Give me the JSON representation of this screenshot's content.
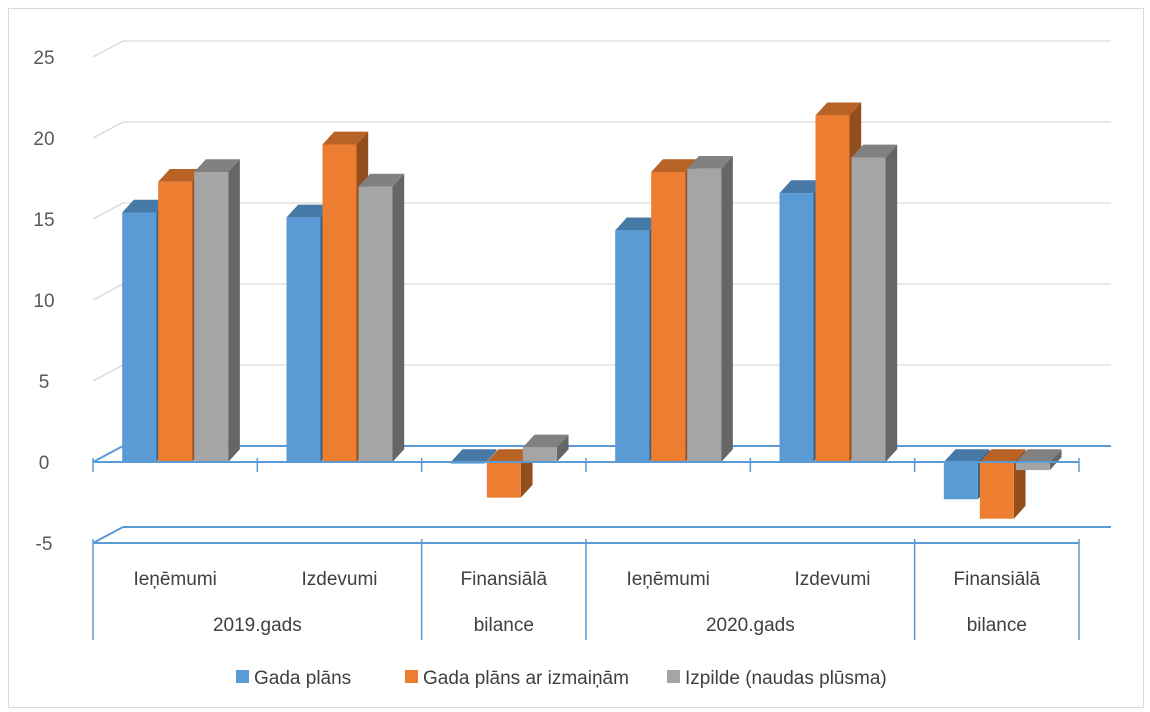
{
  "chart_data": {
    "type": "bar",
    "style": "3d-clustered-column",
    "groups": [
      {
        "label": "2019.gads",
        "categories": [
          "Ieņēmumi",
          "Izdevumi",
          [
            "Finansiālā",
            "bilance"
          ]
        ]
      },
      {
        "label": "2020.gads",
        "categories": [
          "Ieņēmumi",
          "Izdevumi",
          [
            "Finansiālā",
            "bilance"
          ]
        ]
      }
    ],
    "series": [
      {
        "name": "Gada plāns",
        "color": "#5b9bd5",
        "values": [
          15.4,
          15.1,
          -0.1,
          14.3,
          16.6,
          -2.3
        ]
      },
      {
        "name": "Gada plāns ar izmaiņām",
        "color": "#ed7d31",
        "values": [
          17.3,
          19.6,
          -2.2,
          17.9,
          21.4,
          -3.5
        ]
      },
      {
        "name": "Izpilde (naudas plūsma)",
        "color": "#a5a5a5",
        "values": [
          17.9,
          17.0,
          0.9,
          18.1,
          18.8,
          -0.5
        ]
      }
    ],
    "yticks": [
      "-5",
      "0",
      "5",
      "10",
      "15",
      "20",
      "25"
    ],
    "ylim": [
      -5,
      25
    ],
    "grid": true,
    "legend_position": "bottom",
    "title": "",
    "xlabel": "",
    "ylabel": ""
  }
}
